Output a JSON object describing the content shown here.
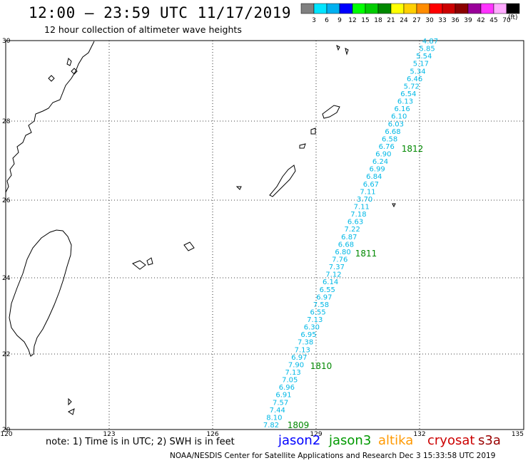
{
  "header": {
    "title": "12:00 – 23:59 UTC 11/17/2019",
    "subtitle": "12 hour collection of altimeter wave heights"
  },
  "legend": {
    "unit": "(ft)",
    "bins": [
      {
        "color": "#808080",
        "label": "3"
      },
      {
        "color": "#00e5ff",
        "label": "6"
      },
      {
        "color": "#00b0f0",
        "label": "9"
      },
      {
        "color": "#0000ff",
        "label": "12"
      },
      {
        "color": "#00ff00",
        "label": "15"
      },
      {
        "color": "#00cc00",
        "label": "18"
      },
      {
        "color": "#008800",
        "label": "21"
      },
      {
        "color": "#ffff00",
        "label": "24"
      },
      {
        "color": "#ffd000",
        "label": "27"
      },
      {
        "color": "#ff8c00",
        "label": "30"
      },
      {
        "color": "#ff0000",
        "label": "33"
      },
      {
        "color": "#cc0000",
        "label": "36"
      },
      {
        "color": "#8b0000",
        "label": "39"
      },
      {
        "color": "#990099",
        "label": "42"
      },
      {
        "color": "#ff33ff",
        "label": "45"
      },
      {
        "color": "#ffaaff",
        "label": "70"
      },
      {
        "color": "#000000",
        "label": ""
      }
    ]
  },
  "axes": {
    "lon_ticks": [
      "120",
      "123",
      "126",
      "129",
      "132",
      "135"
    ],
    "lat_ticks": [
      "30",
      "28",
      "26",
      "24",
      "22",
      "20"
    ]
  },
  "track": {
    "color": "#00b8e6",
    "wave_heights": [
      "4.87",
      "5.85",
      "5.54",
      "5.17",
      "5.34",
      "6.46",
      "5.72",
      "6.54",
      "6.13",
      "6.16",
      "6.10",
      "6.03",
      "6.68",
      "6.58",
      "6.76",
      "6.90",
      "6.24",
      "6.99",
      "6.84",
      "6.67",
      "7.11",
      "3.70",
      "7.11",
      "7.18",
      "6.63",
      "7.22",
      "6.87",
      "6.68",
      "6.80",
      "7.76",
      "7.37",
      "7.12",
      "6.14",
      "6.55",
      "6.97",
      "7.58",
      "6.55",
      "7.13",
      "6.30",
      "6.95",
      "7.38",
      "7.13",
      "6.97",
      "7.90",
      "7.13",
      "7.05",
      "6.96",
      "6.91",
      "7.57",
      "7.44",
      "8.10",
      "7.82"
    ]
  },
  "time_labels": [
    "1812",
    "1811",
    "1810",
    "1809"
  ],
  "time_label_color": "#008800",
  "satellites": [
    {
      "name": "jason2",
      "color": "#0000ff"
    },
    {
      "name": "jason3",
      "color": "#009900"
    },
    {
      "name": "altika",
      "color": "#ff9900"
    },
    {
      "name": "cryosat",
      "color": "#cc0000"
    },
    {
      "name": "s3a",
      "color": "#990000"
    }
  ],
  "footer": {
    "note": "note: 1) Time is in UTC; 2) SWH is in feet",
    "credit": "NOAA/NESDIS Center for Satellite Applications and Research    Dec  3 15:33:58 UTC 2019"
  }
}
